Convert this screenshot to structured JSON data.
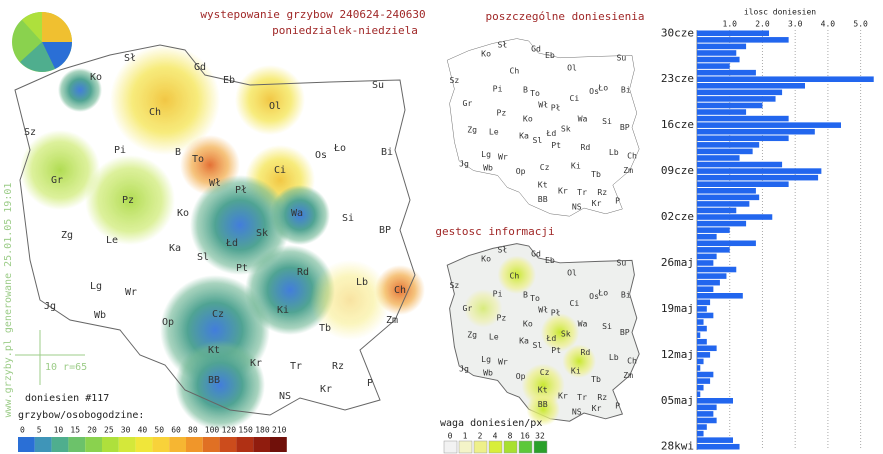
{
  "title": "wystepowanie grzybow 240624-240630",
  "subtitle": "poniedzialek-niedziela",
  "watermark": "www.grzyby.pl generowane 25.01.05 19:01",
  "scale_label": "10 r=65",
  "reports_count": "doniesien #117",
  "legend": {
    "title": "grzybow/osobogodzine:",
    "labels": [
      0,
      5,
      10,
      15,
      20,
      25,
      30,
      40,
      50,
      60,
      80,
      100,
      120,
      150,
      180,
      210
    ],
    "colors": [
      "#2a6fd6",
      "#3f95b8",
      "#4fae8e",
      "#6cc26a",
      "#8ad24e",
      "#aee03c",
      "#d4e83a",
      "#f0e63a",
      "#f8d23a",
      "#f6b632",
      "#f0962a",
      "#e07024",
      "#cc4c1c",
      "#b03014",
      "#901c0e",
      "#70100a"
    ]
  },
  "cities": [
    "Ko",
    "Sł",
    "Gd",
    "Eb",
    "Ol",
    "Su",
    "Ch",
    "Pi",
    "B",
    "To",
    "Wł",
    "Os",
    "Ło",
    "Bi",
    "Sz",
    "Gr",
    "Pz",
    "Ko",
    "Pł",
    "Ci",
    "Wa",
    "Si",
    "Zg",
    "Le",
    "Ka",
    "Łd",
    "Sk",
    "BP",
    "Sl",
    "Pt",
    "Rd",
    "Lg",
    "Wr",
    "Lb",
    "Ch",
    "Jg",
    "Wb",
    "Op",
    "Cz",
    "Ki",
    "Zm",
    "Tb",
    "Kt",
    "Kr",
    "Tr",
    "Rz",
    "BB",
    "NS",
    "Kr",
    "P"
  ],
  "panels": {
    "reports_title": "poszczególne doniesienia",
    "density_title": "gestosc informacji",
    "density_legend": {
      "title": "waga doniesien/px",
      "labels": [
        0,
        1,
        2,
        4,
        8,
        16,
        32
      ],
      "colors": [
        "#f2f2f2",
        "#f4f4c8",
        "#eef08a",
        "#d8ee3a",
        "#a8e030",
        "#5cc83a",
        "#2aa02a"
      ]
    }
  },
  "chart_data": {
    "type": "bar",
    "orientation": "horizontal",
    "title": "ilosc doniesien",
    "categories": [
      "30cze",
      null,
      null,
      null,
      null,
      null,
      null,
      "23cze",
      null,
      null,
      null,
      null,
      null,
      null,
      "16cze",
      null,
      null,
      null,
      null,
      null,
      null,
      "09cze",
      null,
      null,
      null,
      null,
      null,
      null,
      "02cze",
      null,
      null,
      null,
      null,
      null,
      null,
      "26maj",
      null,
      null,
      null,
      null,
      null,
      null,
      "19maj",
      null,
      null,
      null,
      null,
      null,
      null,
      "12maj",
      null,
      null,
      null,
      null,
      null,
      null,
      "05maj",
      null,
      null,
      null,
      null,
      null,
      null,
      "28kwi"
    ],
    "values": [
      2.2,
      2.8,
      1.5,
      1.2,
      1.3,
      1.0,
      1.8,
      5.4,
      3.3,
      2.6,
      2.4,
      2.0,
      1.5,
      2.8,
      4.4,
      3.6,
      2.8,
      1.9,
      1.7,
      1.3,
      2.6,
      3.8,
      3.7,
      2.8,
      1.8,
      1.9,
      1.6,
      1.2,
      2.3,
      1.5,
      1.0,
      0.6,
      1.8,
      1.0,
      0.6,
      0.5,
      1.2,
      0.9,
      0.7,
      0.5,
      1.4,
      0.4,
      0.3,
      0.5,
      0.2,
      0.3,
      0.1,
      0.3,
      0.6,
      0.4,
      0.2,
      0.1,
      0.5,
      0.4,
      0.2,
      0.1,
      1.1,
      0.6,
      0.5,
      0.6,
      0.3,
      0.2,
      1.1,
      1.3
    ],
    "color": "#2266ee",
    "xlim": [
      0,
      5.5
    ],
    "xticks": [
      {
        "value": 1,
        "label": "1.0"
      },
      {
        "value": 2,
        "label": "2.0"
      },
      {
        "value": 3,
        "label": "3.0"
      },
      {
        "value": 4,
        "label": "4.0"
      },
      {
        "value": 5,
        "label": "5.0"
      }
    ],
    "grid": true
  }
}
